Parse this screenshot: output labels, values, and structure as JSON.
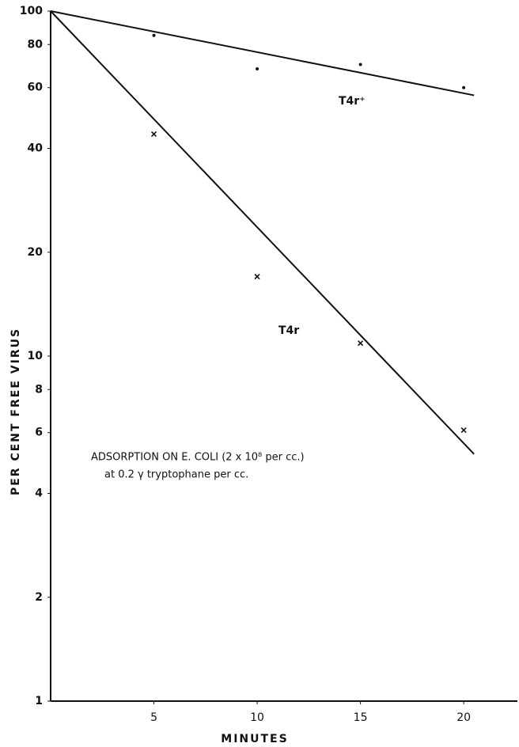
{
  "chart_data": {
    "type": "scatter",
    "x_label": "MINUTES",
    "y_label": "PER CENT FREE VIRUS",
    "log_y": true,
    "xlim": [
      0,
      22.6
    ],
    "xticks": [
      5,
      10,
      15,
      20
    ],
    "ylim": [
      1,
      100
    ],
    "yticks": [
      1,
      2,
      4,
      6,
      8,
      10,
      20,
      40,
      60,
      80,
      100
    ],
    "color": "#111111",
    "annotations": [
      "ADSORPTION ON E. COLI (2 x 10⁸ per cc.)",
      "at 0.2 γ tryptophane per cc."
    ],
    "series": [
      {
        "name": "T4r⁺",
        "marker": "dot",
        "x": [
          5,
          10,
          15,
          20
        ],
        "values": [
          85,
          68,
          70,
          60
        ],
        "fit_x": [
          0,
          20.5
        ],
        "fit_values": [
          100,
          57
        ]
      },
      {
        "name": "T4r",
        "marker": "x",
        "x": [
          5,
          10,
          15,
          20
        ],
        "values": [
          44,
          17,
          10.9,
          6.1
        ],
        "fit_x": [
          0,
          20.5
        ],
        "fit_values": [
          100,
          5.2
        ]
      }
    ]
  }
}
